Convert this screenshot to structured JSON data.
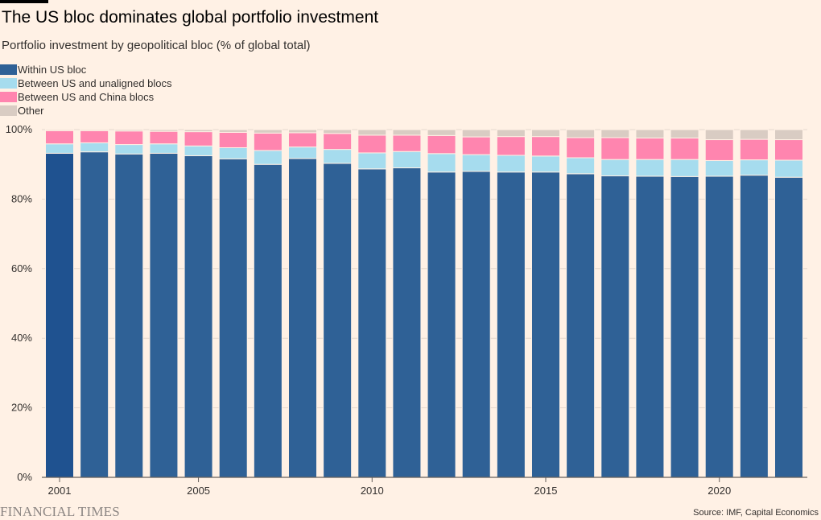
{
  "page": {
    "title": "The US bloc dominates global portfolio investment",
    "subtitle": "Portfolio investment by geopolitical bloc (% of global total)",
    "brand": "FINANCIAL TIMES",
    "source": "Source: IMF, Capital Economics"
  },
  "colors": {
    "background": "#FFF1E5",
    "gridline": "#E6D9CE",
    "axis": "#66605C",
    "highlight_bar": "#1F5290"
  },
  "legend": [
    {
      "label": "Within US bloc",
      "color": "#2F6196"
    },
    {
      "label": "Between US and unaligned blocs",
      "color": "#A6DCEE"
    },
    {
      "label": "Between US and China blocs",
      "color": "#FF85AF"
    },
    {
      "label": "Other",
      "color": "#D9CCC3"
    }
  ],
  "chart_data": {
    "type": "bar",
    "stacked": true,
    "title": "The US bloc dominates global portfolio investment",
    "subtitle": "Portfolio investment by geopolitical bloc (% of global total)",
    "xlabel": "",
    "ylabel": "",
    "ylim": [
      0,
      100
    ],
    "y_ticks": [
      0,
      20,
      40,
      60,
      80,
      100
    ],
    "y_tick_labels": [
      "0%",
      "20%",
      "40%",
      "60%",
      "80%",
      "100%"
    ],
    "x_tick_labels": [
      "2001",
      "2005",
      "2010",
      "2015",
      "2020"
    ],
    "categories": [
      "2001",
      "2002",
      "2003",
      "2004",
      "2005",
      "2006",
      "2007",
      "2008",
      "2009",
      "2010",
      "2011",
      "2012",
      "2013",
      "2014",
      "2015",
      "2016",
      "2017",
      "2018",
      "2019",
      "2020",
      "2021",
      "2022"
    ],
    "highlighted_category": "2001",
    "legend_position": "top-left",
    "grid": true,
    "series": [
      {
        "name": "Within US bloc",
        "color": "#2F6196",
        "values": [
          93.2,
          93.6,
          93.0,
          93.2,
          92.5,
          91.6,
          90.0,
          91.7,
          90.3,
          88.7,
          89.0,
          87.8,
          88.0,
          87.8,
          87.8,
          87.3,
          86.7,
          86.6,
          86.5,
          86.6,
          86.9,
          86.3
        ]
      },
      {
        "name": "Between US and unaligned blocs",
        "color": "#A6DCEE",
        "values": [
          2.7,
          2.6,
          2.7,
          2.7,
          2.8,
          3.2,
          4.0,
          3.3,
          4.0,
          4.6,
          4.7,
          5.3,
          4.8,
          4.8,
          4.6,
          4.6,
          4.7,
          4.8,
          4.9,
          4.5,
          4.4,
          4.9
        ]
      },
      {
        "name": "Between US and China blocs",
        "color": "#FF85AF",
        "values": [
          3.8,
          3.5,
          3.9,
          3.6,
          4.1,
          4.4,
          5.0,
          4.1,
          4.6,
          5.1,
          4.7,
          5.2,
          5.1,
          5.4,
          5.6,
          5.8,
          6.3,
          6.2,
          6.2,
          6.0,
          5.9,
          5.9
        ]
      },
      {
        "name": "Other",
        "color": "#D9CCC3",
        "values": [
          0.3,
          0.3,
          0.4,
          0.5,
          0.6,
          0.8,
          1.0,
          0.9,
          1.1,
          1.6,
          1.6,
          1.7,
          2.1,
          2.0,
          2.0,
          2.3,
          2.3,
          2.4,
          2.4,
          2.9,
          2.8,
          2.9
        ]
      }
    ]
  }
}
